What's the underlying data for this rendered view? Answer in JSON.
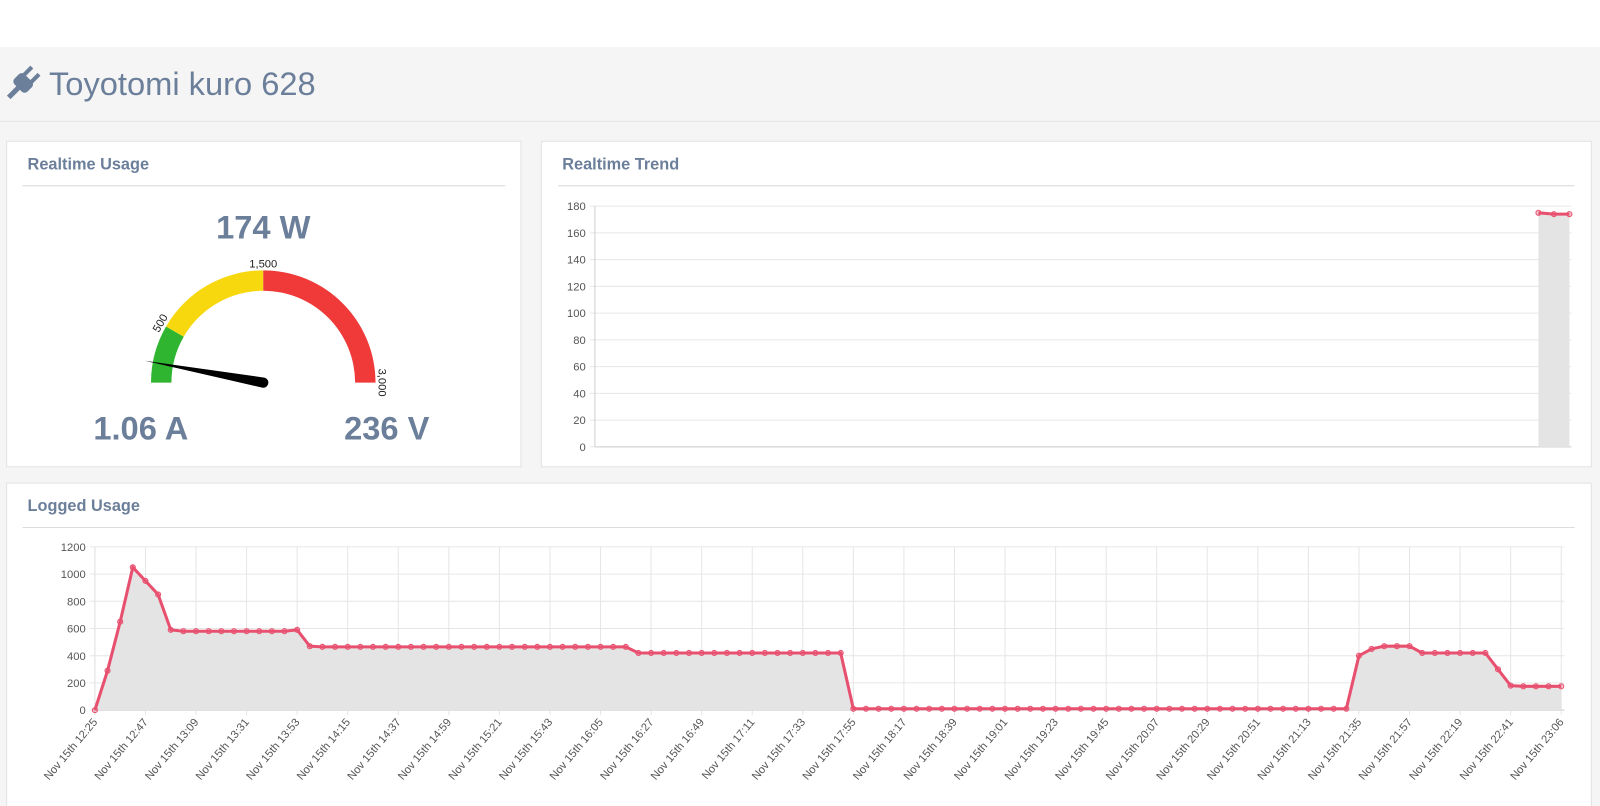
{
  "header": {
    "title": "Toyotomi kuro 628"
  },
  "realtime_usage": {
    "title": "Realtime Usage",
    "chart_data": {
      "type": "gauge",
      "value": 174,
      "value_label": "174 W",
      "lim": [
        0,
        3000
      ],
      "ticks": [
        500,
        {
          "value": 1500,
          "label": "1,500"
        },
        {
          "value": 3000,
          "label": "3,000"
        }
      ],
      "bands": [
        {
          "from": 0,
          "to": 500,
          "color": "#2fb52f"
        },
        {
          "from": 500,
          "to": 1500,
          "color": "#f7d80f"
        },
        {
          "from": 1500,
          "to": 3000,
          "color": "#f03a3a"
        }
      ],
      "needle_color": "#000000"
    },
    "current": "1.06 A",
    "voltage": "236 V"
  },
  "realtime_trend": {
    "title": "Realtime Trend",
    "chart_data": {
      "type": "line",
      "color": "#e8506f",
      "area_color": "#e4e4e4",
      "markers": true,
      "grid": true,
      "xgrid": false,
      "ylim": [
        0,
        180
      ],
      "yticks": [
        0,
        20,
        40,
        60,
        80,
        100,
        120,
        140,
        160,
        180
      ],
      "categories": [
        null,
        null,
        null,
        null,
        null,
        null,
        null,
        null,
        null,
        null,
        null,
        null,
        null,
        null,
        null,
        null,
        null,
        null,
        null,
        null,
        null,
        null,
        null,
        null,
        null,
        null,
        null,
        null,
        null,
        null,
        null,
        null,
        null,
        null,
        null,
        null,
        null,
        null,
        null,
        null,
        null,
        null,
        null,
        null,
        null,
        null,
        null,
        null,
        null,
        null,
        null,
        null,
        null,
        null,
        null,
        null,
        null,
        null,
        null,
        null,
        null,
        null,
        null,
        null
      ],
      "values": [
        null,
        null,
        null,
        null,
        null,
        null,
        null,
        null,
        null,
        null,
        null,
        null,
        null,
        null,
        null,
        null,
        null,
        null,
        null,
        null,
        null,
        null,
        null,
        null,
        null,
        null,
        null,
        null,
        null,
        null,
        null,
        null,
        null,
        null,
        null,
        null,
        null,
        null,
        null,
        null,
        null,
        null,
        null,
        null,
        null,
        null,
        null,
        null,
        null,
        null,
        null,
        null,
        null,
        null,
        null,
        null,
        null,
        null,
        null,
        null,
        null,
        175,
        174,
        174
      ]
    }
  },
  "logged_usage": {
    "title": "Logged Usage",
    "chart_data": {
      "type": "line",
      "color": "#e8506f",
      "area_color": "#e4e4e4",
      "markers": true,
      "grid": true,
      "xgrid": true,
      "ylim": [
        0,
        1200
      ],
      "yticks": [
        0,
        200,
        400,
        600,
        800,
        1000,
        1200
      ],
      "categories": [
        "Nov 15th 12:25",
        null,
        null,
        null,
        "Nov 15th 12:47",
        null,
        null,
        null,
        "Nov 15th 13:09",
        null,
        null,
        null,
        "Nov 15th 13:31",
        null,
        null,
        null,
        "Nov 15th 13:53",
        null,
        null,
        null,
        "Nov 15th 14:15",
        null,
        null,
        null,
        "Nov 15th 14:37",
        null,
        null,
        null,
        "Nov 15th 14:59",
        null,
        null,
        null,
        "Nov 15th 15:21",
        null,
        null,
        null,
        "Nov 15th 15:43",
        null,
        null,
        null,
        "Nov 15th 16:05",
        null,
        null,
        null,
        "Nov 15th 16:27",
        null,
        null,
        null,
        "Nov 15th 16:49",
        null,
        null,
        null,
        "Nov 15th 17:11",
        null,
        null,
        null,
        "Nov 15th 17:33",
        null,
        null,
        null,
        "Nov 15th 17:55",
        null,
        null,
        null,
        "Nov 15th 18:17",
        null,
        null,
        null,
        "Nov 15th 18:39",
        null,
        null,
        null,
        "Nov 15th 19:01",
        null,
        null,
        null,
        "Nov 15th 19:23",
        null,
        null,
        null,
        "Nov 15th 19:45",
        null,
        null,
        null,
        "Nov 15th 20:07",
        null,
        null,
        null,
        "Nov 15th 20:29",
        null,
        null,
        null,
        "Nov 15th 20:51",
        null,
        null,
        null,
        "Nov 15th 21:13",
        null,
        null,
        null,
        "Nov 15th 21:35",
        null,
        null,
        null,
        "Nov 15th 21:57",
        null,
        null,
        null,
        "Nov 15th 22:19",
        null,
        null,
        null,
        "Nov 15th 22:41",
        null,
        null,
        null,
        "Nov 15th 23:06"
      ],
      "values": [
        0,
        290,
        650,
        1050,
        950,
        850,
        590,
        580,
        580,
        580,
        580,
        580,
        580,
        580,
        580,
        580,
        590,
        470,
        465,
        465,
        465,
        465,
        465,
        465,
        465,
        465,
        465,
        465,
        465,
        465,
        465,
        465,
        465,
        465,
        465,
        465,
        465,
        465,
        465,
        465,
        465,
        465,
        465,
        420,
        420,
        420,
        420,
        420,
        420,
        420,
        420,
        420,
        420,
        420,
        420,
        420,
        420,
        420,
        420,
        420,
        10,
        10,
        10,
        10,
        10,
        10,
        10,
        10,
        10,
        10,
        10,
        10,
        10,
        10,
        10,
        10,
        10,
        10,
        10,
        10,
        10,
        10,
        10,
        10,
        10,
        10,
        10,
        10,
        10,
        10,
        10,
        10,
        10,
        10,
        10,
        10,
        10,
        10,
        10,
        10,
        400,
        450,
        470,
        470,
        470,
        420,
        420,
        420,
        420,
        420,
        420,
        300,
        180,
        175,
        175,
        175,
        175
      ]
    }
  }
}
